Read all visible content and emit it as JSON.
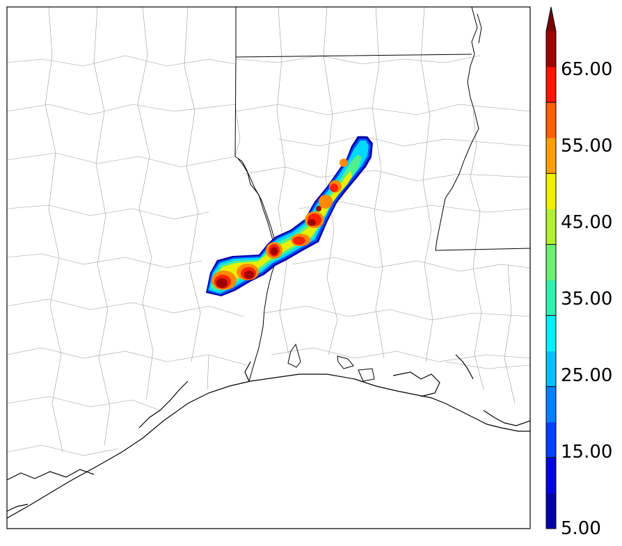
{
  "colorbar": {
    "tick_labels": [
      "5.00",
      "15.00",
      "25.00",
      "35.00",
      "45.00",
      "55.00",
      "65.00"
    ],
    "extend": "max",
    "levels": [
      5,
      10,
      15,
      20,
      25,
      30,
      35,
      40,
      45,
      50,
      55,
      60,
      65,
      70
    ],
    "colors": [
      "#0000a8",
      "#0000e0",
      "#0040ff",
      "#0080ff",
      "#00c0ff",
      "#00f0ff",
      "#30f0b0",
      "#70f070",
      "#b0f030",
      "#f0f000",
      "#ffa000",
      "#ff6000",
      "#ff1500",
      "#a00000"
    ],
    "over_color": "#7a0000"
  }
}
